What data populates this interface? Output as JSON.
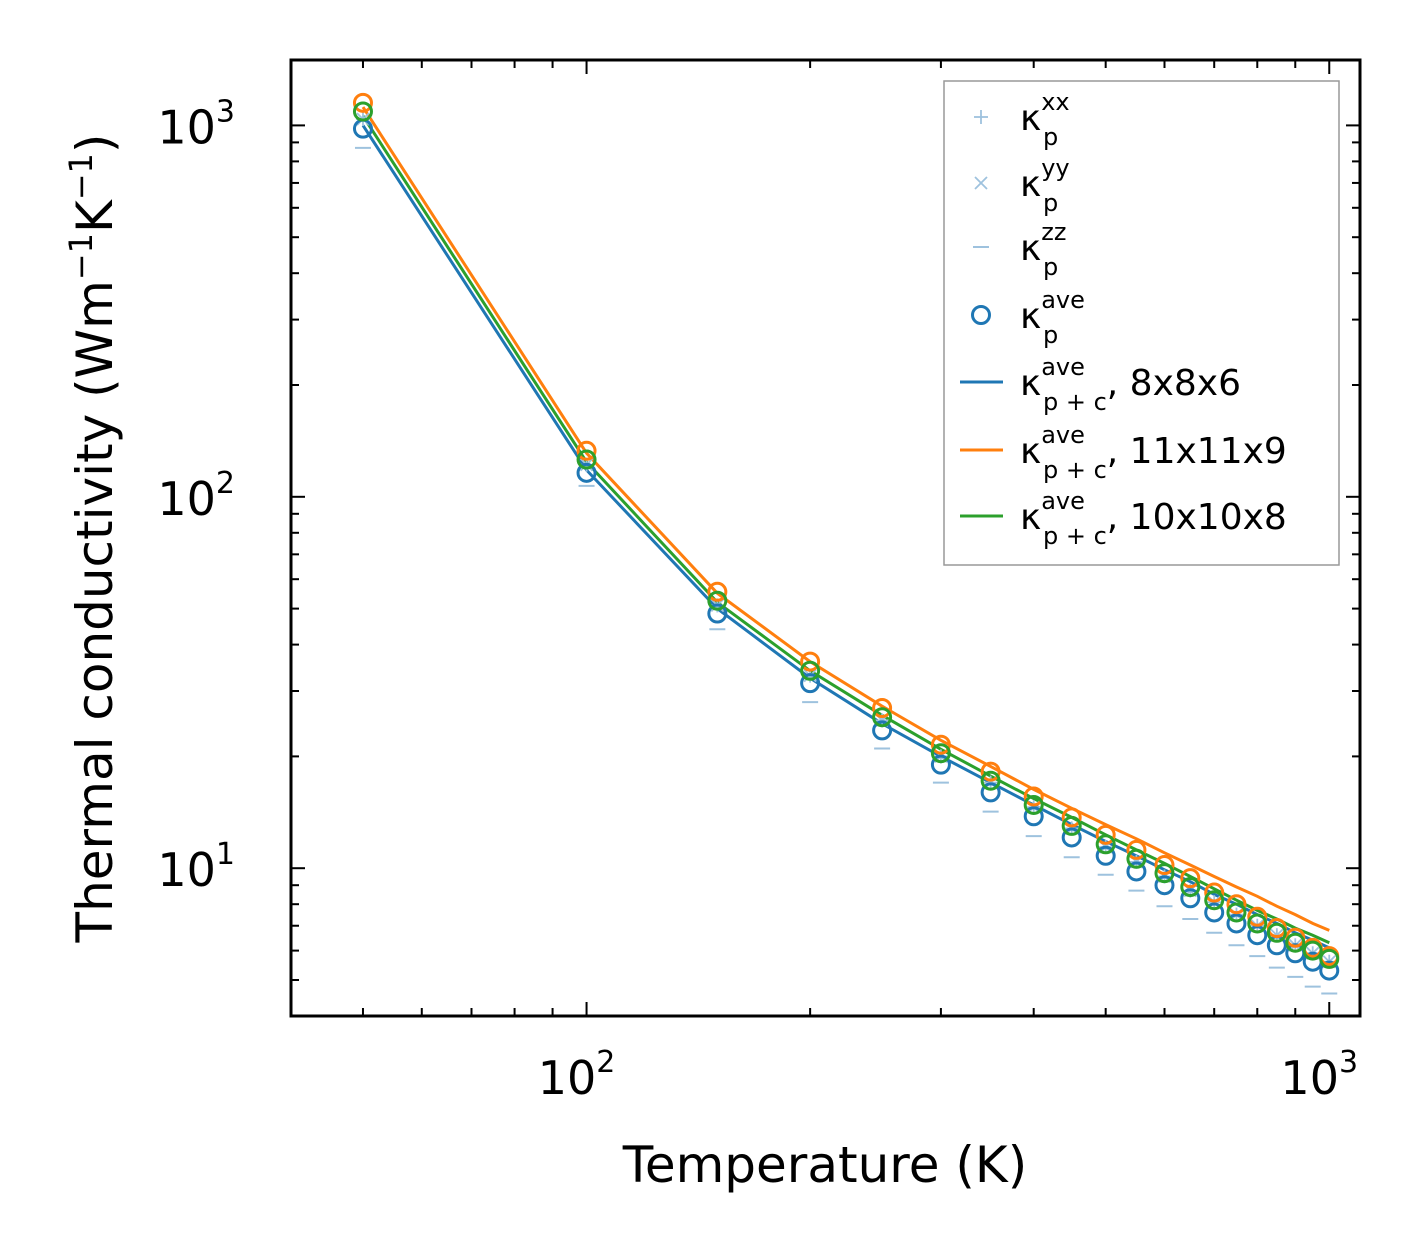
{
  "chart_data": {
    "type": "scatter",
    "xscale": "log",
    "yscale": "log",
    "xlabel": "Temperature (K)",
    "ylabel": {
      "main": "Thermal conductivity (Wm",
      "exp1": "−1",
      "mid": "K",
      "exp2": "−1",
      "end": ")"
    },
    "xlim": [
      40,
      1100
    ],
    "ylim": [
      4,
      1500
    ],
    "xticks": [
      {
        "base": "10",
        "exp": "2",
        "value": 100
      },
      {
        "base": "10",
        "exp": "3",
        "value": 1000
      }
    ],
    "yticks": [
      {
        "base": "10",
        "exp": "1",
        "value": 10
      },
      {
        "base": "10",
        "exp": "2",
        "value": 100
      },
      {
        "base": "10",
        "exp": "3",
        "value": 1000
      }
    ],
    "x": [
      50,
      100,
      150,
      200,
      250,
      300,
      350,
      400,
      450,
      500,
      550,
      600,
      650,
      700,
      750,
      800,
      850,
      900,
      950,
      1000
    ],
    "series": [
      {
        "name": "κp^xx",
        "label": "κ",
        "sub": "p",
        "sup": "xx",
        "kind": "marker",
        "marker": "plus",
        "color": "#9ec2de",
        "values": [
          1040,
          122,
          51,
          33,
          25,
          20,
          17,
          14.6,
          12.8,
          11.4,
          10.4,
          9.5,
          8.7,
          8.1,
          7.5,
          7.0,
          6.6,
          6.2,
          5.9,
          5.6
        ]
      },
      {
        "name": "κp^yy",
        "label": "κ",
        "sub": "p",
        "sup": "yy",
        "kind": "marker",
        "marker": "cross",
        "color": "#9ec2de",
        "values": [
          1040,
          122,
          51,
          33,
          25,
          20,
          17,
          14.6,
          12.8,
          11.4,
          10.4,
          9.5,
          8.7,
          8.1,
          7.5,
          7.0,
          6.6,
          6.2,
          5.9,
          5.6
        ]
      },
      {
        "name": "κp^zz",
        "label": "κ",
        "sub": "p",
        "sup": "zz",
        "kind": "marker",
        "marker": "dash",
        "color": "#9ec2de",
        "values": [
          870,
          107,
          44,
          28,
          21,
          17,
          14.2,
          12.2,
          10.7,
          9.6,
          8.7,
          7.9,
          7.3,
          6.7,
          6.2,
          5.8,
          5.4,
          5.1,
          4.8,
          4.6
        ]
      },
      {
        "name": "κp^ave",
        "label": "κ",
        "sub": "p",
        "sup": "ave",
        "kind": "marker",
        "marker": "circle",
        "color": "#1f77b4",
        "values": [
          980,
          116,
          48.5,
          31.5,
          23.5,
          19.0,
          16.0,
          13.8,
          12.1,
          10.8,
          9.8,
          9.0,
          8.3,
          7.6,
          7.1,
          6.6,
          6.2,
          5.9,
          5.6,
          5.3
        ]
      },
      {
        "name": "κp^ave (11x11x9)",
        "label": "κ",
        "sub": "",
        "sup": "",
        "kind": "marker",
        "marker": "circle",
        "color": "#ff7f0e",
        "legend": false,
        "values": [
          1150,
          133,
          55.5,
          36,
          27,
          21.5,
          18.2,
          15.6,
          13.7,
          12.3,
          11.2,
          10.2,
          9.4,
          8.6,
          8.0,
          7.4,
          6.9,
          6.5,
          6.1,
          5.8
        ]
      },
      {
        "name": "κp^ave (10x10x8)",
        "label": "κ",
        "sub": "",
        "sup": "",
        "kind": "marker",
        "marker": "circle",
        "color": "#2ca02c",
        "legend": false,
        "values": [
          1090,
          126,
          52.5,
          34,
          25.5,
          20.4,
          17.2,
          14.8,
          13.0,
          11.6,
          10.6,
          9.7,
          8.9,
          8.2,
          7.6,
          7.1,
          6.7,
          6.3,
          6.0,
          5.7
        ]
      },
      {
        "name": "κp+c^ave, 8x8x6",
        "label": "κ",
        "sub": "p + c",
        "sup": "ave",
        "suffix": ", 8x8x6",
        "kind": "line",
        "color": "#1f77b4",
        "values": [
          1000,
          118,
          50,
          32.5,
          24.5,
          20.0,
          17.0,
          14.8,
          13.1,
          11.8,
          10.8,
          9.9,
          9.2,
          8.5,
          8.0,
          7.5,
          7.1,
          6.7,
          6.4,
          6.1
        ]
      },
      {
        "name": "κp+c^ave, 11x11x9",
        "label": "κ",
        "sub": "p + c",
        "sup": "ave",
        "suffix": ", 11x11x9",
        "kind": "line",
        "color": "#ff7f0e",
        "values": [
          1120,
          131,
          55,
          36,
          27.3,
          22.1,
          18.8,
          16.3,
          14.5,
          13.1,
          12.0,
          11.0,
          10.2,
          9.5,
          8.9,
          8.4,
          7.9,
          7.5,
          7.1,
          6.8
        ]
      },
      {
        "name": "κp+c^ave, 10x10x8",
        "label": "κ",
        "sub": "p + c",
        "sup": "ave",
        "suffix": ", 10x10x8",
        "kind": "line",
        "color": "#2ca02c",
        "values": [
          1060,
          124,
          52,
          34,
          25.8,
          20.9,
          17.7,
          15.4,
          13.7,
          12.3,
          11.2,
          10.3,
          9.5,
          8.8,
          8.2,
          7.7,
          7.3,
          6.9,
          6.6,
          6.3
        ]
      }
    ]
  }
}
